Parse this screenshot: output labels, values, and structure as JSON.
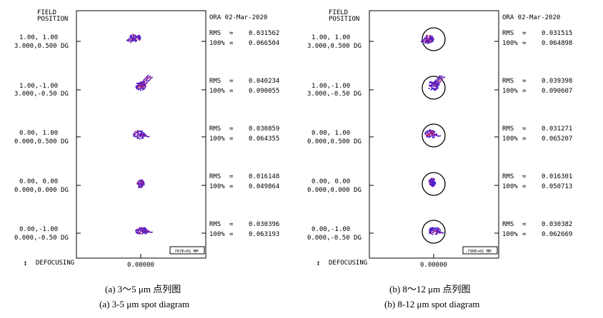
{
  "colors": {
    "spot": "#4a1fd0",
    "spot_alt": "#c41f6a",
    "ink": "#000000"
  },
  "panels": [
    {
      "header": [
        "FIELD",
        "POSITION"
      ],
      "date_label": "ORA 02-Mar-2020",
      "footer_label": "DEFOCUSING",
      "footer_value": "0.00000",
      "corner_mark": "‡",
      "scale_label": ".767E+01 MM",
      "fields": [
        {
          "line1": "1.00, 1.00",
          "line2": "3.000,0.500 DG",
          "rms": "0.031562",
          "hundred": "0.066504"
        },
        {
          "line1": "1.00,-1.00",
          "line2": "3.000,-0.50 DG",
          "rms": "0.040234",
          "hundred": "0.090055"
        },
        {
          "line1": "0.00, 1.00",
          "line2": "0.000,0.500 DG",
          "rms": "0.030859",
          "hundred": "0.064355"
        },
        {
          "line1": "0.00, 0.00",
          "line2": "0.000,0.000 DG",
          "rms": "0.016148",
          "hundred": "0.049864"
        },
        {
          "line1": "0.00,-1.00",
          "line2": "0.000,-0.50 DG",
          "rms": "0.030396",
          "hundred": "0.063193"
        }
      ],
      "rms_key": "RMS",
      "hundred_key": "100%",
      "eq": "=",
      "caption_cn": "(a) 3～5 μm 点列图",
      "caption_en": "(a) 3-5 μm spot diagram"
    },
    {
      "header": [
        "FIELD",
        "POSITION"
      ],
      "date_label": "ORA 02-Mar-2020",
      "footer_label": "DEFOCUSING",
      "footer_value": "0.00000",
      "corner_mark": "‡",
      "scale_label": ".790E+01 MM",
      "fields": [
        {
          "line1": "1.00, 1.00",
          "line2": "3.000,0.500 DG",
          "rms": "0.031515",
          "hundred": "0.064898"
        },
        {
          "line1": "1.00,-1.00",
          "line2": "3.000,-0.50 DG",
          "rms": "0.039398",
          "hundred": "0.090607"
        },
        {
          "line1": "0.00, 1.00",
          "line2": "0.000,0.500 DG",
          "rms": "0.031271",
          "hundred": "0.065207"
        },
        {
          "line1": "0.00, 0.00",
          "line2": "0.000,0.000 DG",
          "rms": "0.016301",
          "hundred": "0.050713"
        },
        {
          "line1": "0.00,-1.00",
          "line2": "0.000,-0.50 DG",
          "rms": "0.030382",
          "hundred": "0.062669"
        }
      ],
      "rms_key": "RMS",
      "hundred_key": "100%",
      "eq": "=",
      "caption_cn": "(b) 8～12 μm 点列图",
      "caption_en": "(b) 8-12 μm spot diagram"
    }
  ]
}
